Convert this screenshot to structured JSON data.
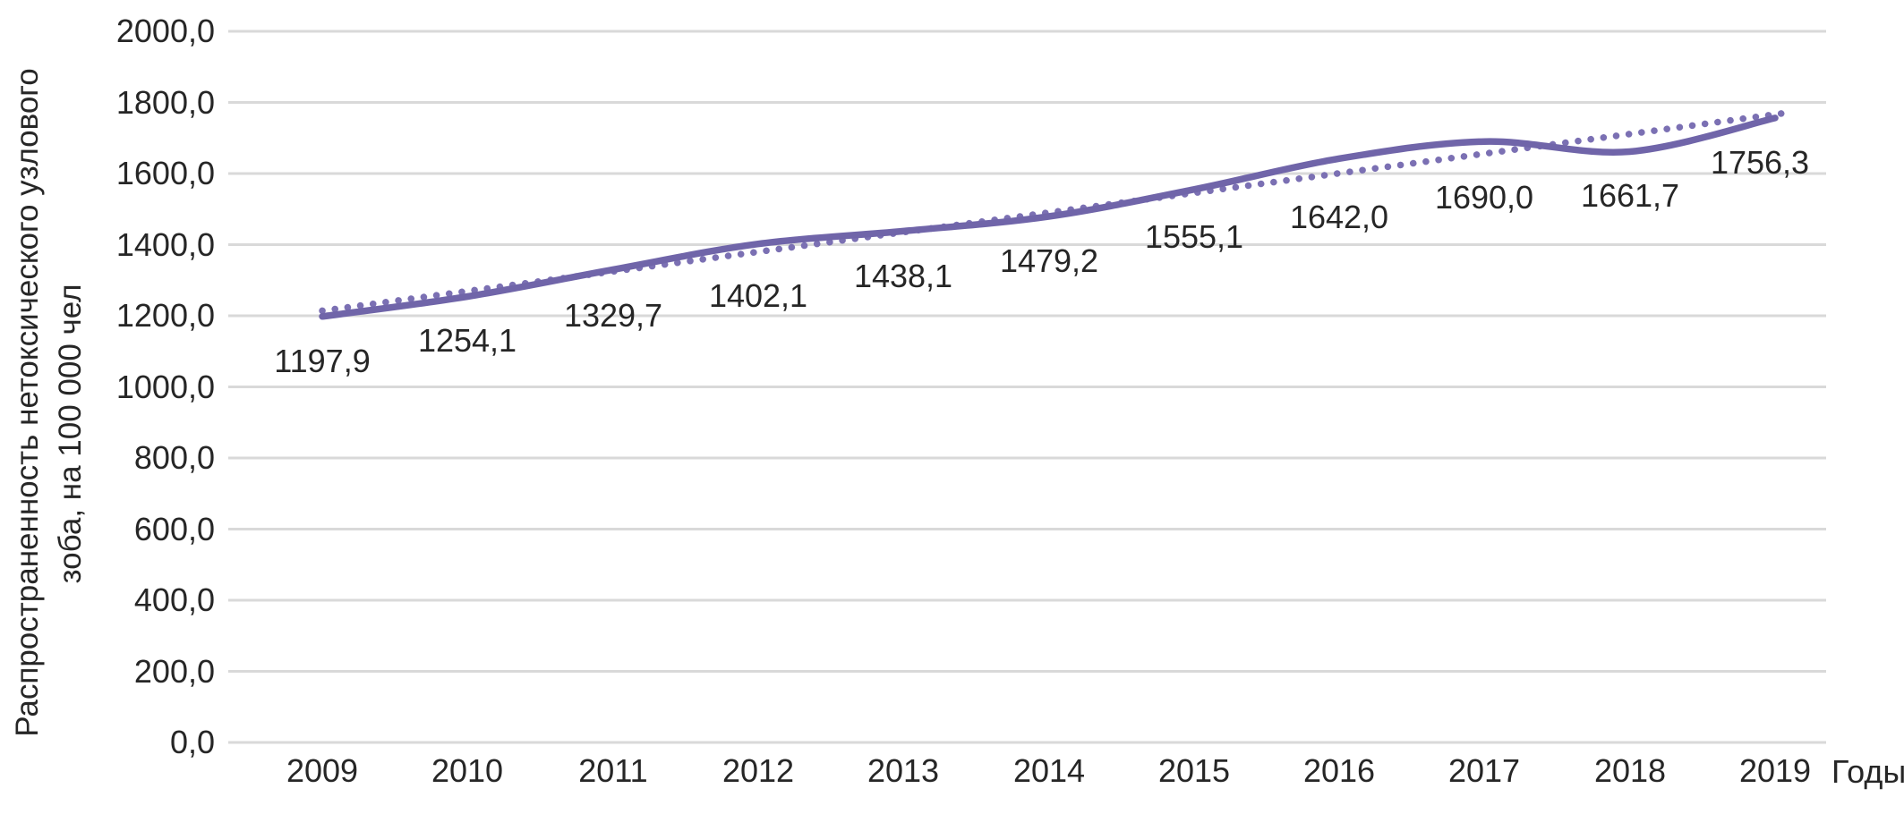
{
  "chart_data": {
    "type": "line",
    "title": "",
    "categories": [
      "2009",
      "2010",
      "2011",
      "2012",
      "2013",
      "2014",
      "2015",
      "2016",
      "2017",
      "2018",
      "2019"
    ],
    "series": [
      {
        "role": "main",
        "line_style": "solid",
        "values": [
          1197.9,
          1254.1,
          1329.7,
          1402.1,
          1438.1,
          1479.2,
          1555.1,
          1642.0,
          1690.0,
          1661.7,
          1756.3
        ],
        "data_labels": [
          "1197,9",
          "1254,1",
          "1329,7",
          "1402,1",
          "1438,1",
          "1479,2",
          "1555,1",
          "1642,0",
          "1690,0",
          "1661,7",
          "1756,3"
        ]
      },
      {
        "role": "linear-trendline",
        "line_style": "dotted",
        "y_start": 1214.2,
        "y_end": 1768.8
      }
    ],
    "xlabel": "Годы",
    "ylabel_line1": "Распространенность нетоксического узлового",
    "ylabel_line2": "зоба, на 100 000 чел",
    "y_axis": {
      "min": 0,
      "max": 2000,
      "step": 200,
      "tick_values": [
        0,
        200,
        400,
        600,
        800,
        1000,
        1200,
        1400,
        1600,
        1800,
        2000
      ],
      "tick_labels": [
        "0,0",
        "200,0",
        "400,0",
        "600,0",
        "800,0",
        "1000,0",
        "1200,0",
        "1400,0",
        "1600,0",
        "1800,0",
        "2000,0"
      ]
    },
    "grid": "horizontal",
    "legend": "none",
    "colors": {
      "line": "#7065A9",
      "trendline": "#7B70B3",
      "gridline": "#D9D9D9",
      "text": "#262626",
      "background": "#FFFFFF"
    }
  }
}
